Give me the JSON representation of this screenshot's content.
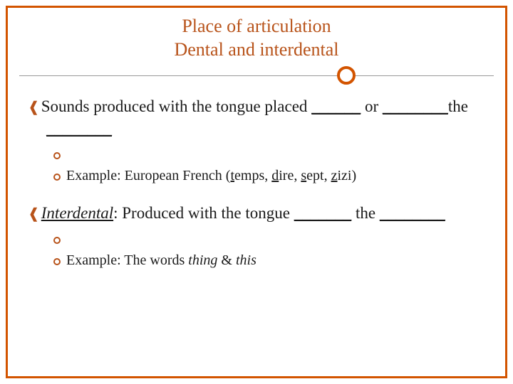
{
  "colors": {
    "accent": "#d35400",
    "title_text": "#b8531a",
    "body_text": "#1a1a1a",
    "divider_line": "#999999",
    "background": "#ffffff"
  },
  "typography": {
    "title_fontsize": 26,
    "body_fontsize_l1": 23,
    "body_fontsize_l2": 20,
    "font_family": "Georgia / Times New Roman (serif)"
  },
  "title": {
    "line1": "Place of articulation",
    "line2": "Dental and interdental"
  },
  "bullets": [
    {
      "level": 1,
      "runs": [
        {
          "t": "Sounds produced with the tongue placed "
        },
        {
          "t": "______",
          "u": true
        },
        {
          "t": " or "
        },
        {
          "t": "________",
          "u": true
        },
        {
          "t": "the "
        },
        {
          "t": "________",
          "u": true
        }
      ]
    },
    {
      "level": 2,
      "runs": []
    },
    {
      "level": 2,
      "runs": [
        {
          "t": "Example: European French ("
        },
        {
          "t": "t",
          "u": true
        },
        {
          "t": "emps, "
        },
        {
          "t": "d",
          "u": true
        },
        {
          "t": "ire, "
        },
        {
          "t": "s",
          "u": true
        },
        {
          "t": "ept, "
        },
        {
          "t": "z",
          "u": true
        },
        {
          "t": "izi)"
        }
      ]
    },
    {
      "level": 0,
      "gap": true
    },
    {
      "level": 1,
      "runs": [
        {
          "t": "Interdental",
          "i": true,
          "u": true
        },
        {
          "t": ": Produced with the tongue "
        },
        {
          "t": "_______",
          "u": true
        },
        {
          "t": " the "
        },
        {
          "t": "________",
          "u": true
        }
      ]
    },
    {
      "level": 2,
      "runs": []
    },
    {
      "level": 2,
      "runs": [
        {
          "t": "Example: The words "
        },
        {
          "t": "thing",
          "i": true
        },
        {
          "t": " & "
        },
        {
          "t": "this",
          "i": true
        }
      ]
    }
  ]
}
